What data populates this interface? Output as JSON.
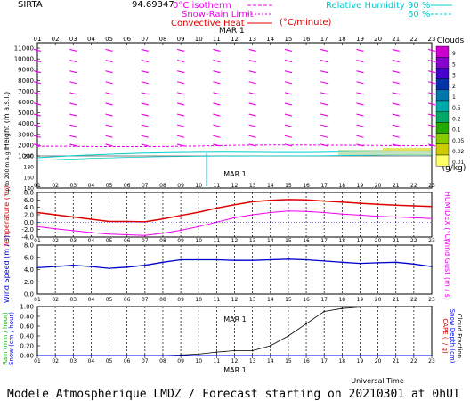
{
  "header": {
    "station": "SIRTA",
    "coords": "94.69347",
    "legend": {
      "isotherm": "0°C isotherm",
      "snow_rain": "Snow-Rain Limit",
      "convective": "Convective Heat",
      "convective_unit": "(°C/minute)",
      "rh": "Relative Humidity",
      "rh_90": "90 %",
      "rh_60": "60 %"
    }
  },
  "footer": "Modele Atmospherique LMDZ / Forecast starting on 20210301 at 0hUT",
  "colors": {
    "temperature": "#dd0000",
    "humidex": "#ee00ee",
    "wind_speed": "#0000cc",
    "wind_gust": "#ee00ee",
    "rain": "#00aa00",
    "snow": "#0000ff",
    "cape": "#cc0000",
    "cloud_fraction": "#000000",
    "rh": "#00cccc",
    "wind_barb": "#ee00ee"
  },
  "chart_data": [
    {
      "type": "line",
      "title": "Height profile",
      "x_ticks": [
        "01",
        "02",
        "03",
        "04",
        "05",
        "06",
        "07",
        "08",
        "09",
        "10",
        "11",
        "12",
        "13",
        "14",
        "15",
        "16",
        "17",
        "18",
        "19",
        "20",
        "21",
        "22",
        "23"
      ],
      "date_label": "MAR  1",
      "ylabel_main": "Height (m a.s.l.)",
      "ylabel_low": "Up to 200 m a.g.l.",
      "y_ticks_upper": [
        "11000",
        "10000",
        "9000",
        "8000",
        "7000",
        "6000",
        "5000",
        "4000",
        "3000",
        "2000",
        "1000"
      ],
      "y_ticks_lower": [
        "200",
        "180",
        "160",
        "140"
      ],
      "ylim_upper": [
        1000,
        11500
      ],
      "ylim_lower": [
        140,
        200
      ],
      "barb_levels_m": [
        10800,
        9800,
        8800,
        7800,
        6800,
        5800,
        4800,
        3800,
        2800,
        2000
      ],
      "barb_hours": [
        1,
        3,
        5,
        7,
        9,
        11,
        13,
        15,
        17,
        19,
        21,
        23
      ],
      "isotherm_0C_m": [
        1900,
        1900,
        1890,
        1880,
        1870,
        1870,
        1870,
        1880,
        1900,
        1920,
        1950,
        1980,
        2000,
        2010,
        2020,
        2010,
        2000,
        1990,
        1980,
        1970,
        1960,
        1950,
        1950
      ]
    },
    {
      "type": "scale",
      "title": "Clouds",
      "unit": "(g/kg)",
      "levels": [
        "9",
        "5",
        "3",
        "2",
        "1",
        "0.5",
        "0.2",
        "0.1",
        "0.05",
        "0.02",
        "0.01"
      ]
    },
    {
      "type": "line",
      "title": "Temperature / Humidex",
      "x": [
        1,
        2,
        3,
        4,
        5,
        6,
        7,
        8,
        9,
        10,
        11,
        12,
        13,
        14,
        15,
        16,
        17,
        18,
        19,
        20,
        21,
        22,
        23
      ],
      "ylabel": "Temperature (°C)",
      "ylabel_right": "HUMIDEX (°C)",
      "ylim": [
        -4,
        8
      ],
      "y_ticks": [
        "8.0",
        "6.0",
        "4.0",
        "2.0",
        "0.0",
        "-2.0",
        "-4.0"
      ],
      "series": [
        {
          "name": "Temperature",
          "values": [
            2.6,
            2.0,
            1.4,
            0.8,
            0.2,
            0.2,
            0.1,
            0.9,
            1.8,
            2.7,
            3.8,
            4.7,
            5.5,
            5.9,
            6.1,
            6.0,
            5.7,
            5.4,
            5.1,
            4.8,
            4.6,
            4.4,
            4.2
          ]
        },
        {
          "name": "Humidex",
          "values": [
            -1.2,
            -1.8,
            -2.3,
            -2.8,
            -3.2,
            -3.4,
            -3.6,
            -3.0,
            -2.2,
            -1.2,
            0.0,
            1.2,
            2.0,
            2.6,
            3.0,
            2.9,
            2.6,
            2.2,
            1.9,
            1.6,
            1.4,
            1.2,
            1.0
          ]
        }
      ]
    },
    {
      "type": "line",
      "title": "Wind",
      "x": [
        1,
        2,
        3,
        4,
        5,
        6,
        7,
        8,
        9,
        10,
        11,
        12,
        13,
        14,
        15,
        16,
        17,
        18,
        19,
        20,
        21,
        22,
        23
      ],
      "ylabel": "Wind Speed (m / s)",
      "ylabel_right": "Wind Gust (m / s)",
      "ylim": [
        0,
        8
      ],
      "y_ticks": [
        "8.0",
        "6.0",
        "4.0",
        "2.0",
        "0.0"
      ],
      "series": [
        {
          "name": "Wind Speed",
          "values": [
            4.3,
            4.5,
            4.7,
            4.5,
            4.2,
            4.4,
            4.7,
            5.2,
            5.6,
            5.6,
            5.6,
            5.5,
            5.5,
            5.6,
            5.7,
            5.6,
            5.4,
            5.2,
            5.0,
            5.1,
            5.2,
            4.9,
            4.5
          ]
        }
      ]
    },
    {
      "type": "line",
      "title": "Precipitation / CAPE",
      "x": [
        1,
        2,
        3,
        4,
        5,
        6,
        7,
        8,
        9,
        10,
        11,
        12,
        13,
        14,
        15,
        16,
        17,
        18,
        19,
        20,
        21,
        22,
        23
      ],
      "ylabel": "Rain (mm / hour)",
      "ylabel2": "Snow (cm / hour)",
      "ylabel_right": "CAPE (J / g)",
      "ylabel_right2": "Snow Depth (cm)",
      "ylabel_right3": "Cloud Fraction",
      "xlabel": "Universal Time",
      "ylim": [
        0,
        1
      ],
      "y_ticks": [
        "1.00",
        "0.80",
        "0.60",
        "0.40",
        "0.20",
        "0.00"
      ],
      "series": [
        {
          "name": "Cloud Fraction",
          "values": [
            0,
            0,
            0,
            0,
            0,
            0,
            0,
            0,
            0.01,
            0.03,
            0.07,
            0.1,
            0.1,
            0.2,
            0.4,
            0.65,
            0.9,
            0.96,
            0.99,
            1.0,
            1.0,
            1.0,
            1.0
          ]
        },
        {
          "name": "Rain",
          "values": [
            0,
            0,
            0,
            0,
            0,
            0,
            0,
            0,
            0,
            0,
            0,
            0,
            0,
            0,
            0,
            0,
            0,
            0,
            0,
            0,
            0,
            0,
            0
          ]
        }
      ]
    }
  ]
}
